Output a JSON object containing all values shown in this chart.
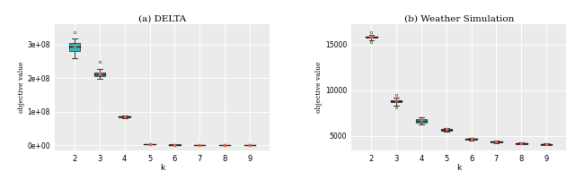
{
  "title_a": "(a) DELTA",
  "title_b": "(b) Weather Simulation",
  "xlabel": "k",
  "ylabel": "objective value",
  "bg_color": "#EBEBEB",
  "grid_color": "white",
  "box_facecolor": "#26bfbf",
  "box_edgecolor": "#333333",
  "median_color": "#1a1a1a",
  "mean_color": "#e8604c",
  "whisker_color": "#333333",
  "flier_color": "#555555",
  "k_values": [
    2,
    3,
    4,
    5,
    6,
    7,
    8,
    9
  ],
  "delta_data": {
    "medians": [
      295000000.0,
      212000000.0,
      86000000.0,
      3200000.0,
      2200000.0,
      1900000.0,
      1800000.0,
      1800000.0
    ],
    "q1": [
      282000000.0,
      207000000.0,
      83500000.0,
      2900000.0,
      2050000.0,
      1800000.0,
      1700000.0,
      1720000.0
    ],
    "q3": [
      305000000.0,
      218000000.0,
      87500000.0,
      3400000.0,
      2350000.0,
      1950000.0,
      1850000.0,
      1870000.0
    ],
    "whislo": [
      260000000.0,
      198000000.0,
      81500000.0,
      2600000.0,
      1950000.0,
      1720000.0,
      1620000.0,
      1650000.0
    ],
    "whishi": [
      318000000.0,
      228000000.0,
      89500000.0,
      3700000.0,
      2550000.0,
      2050000.0,
      1950000.0,
      1970000.0
    ],
    "fliers_hi": [
      338000000.0,
      248000000.0,
      null,
      null,
      null,
      null,
      null,
      null
    ],
    "fliers_lo": [
      null,
      null,
      null,
      null,
      null,
      null,
      null,
      null
    ],
    "means": [
      295000000.0,
      213000000.0,
      86200000.0,
      3220000.0,
      2220000.0,
      1910000.0,
      1810000.0,
      1810000.0
    ]
  },
  "weather_data": {
    "medians": [
      15820,
      8820,
      6650,
      5680,
      4630,
      4340,
      4170,
      4060
    ],
    "q1": [
      15720,
      8650,
      6480,
      5600,
      4560,
      4290,
      4120,
      4010
    ],
    "q3": [
      15900,
      8900,
      6800,
      5760,
      4700,
      4400,
      4220,
      4110
    ],
    "whislo": [
      15500,
      8350,
      6200,
      5470,
      4460,
      4210,
      4040,
      3940
    ],
    "whishi": [
      16050,
      9150,
      7020,
      5900,
      4820,
      4490,
      4310,
      4200
    ],
    "fliers_hi": [
      16300,
      9480,
      null,
      null,
      null,
      null,
      null,
      null
    ],
    "fliers_lo": [
      15250,
      8120,
      null,
      null,
      null,
      null,
      null,
      null
    ],
    "means": [
      15840,
      8870,
      6700,
      5710,
      4645,
      4350,
      4175,
      4070
    ]
  },
  "delta_yticks": [
    0,
    100000000.0,
    200000000.0,
    300000000.0
  ],
  "delta_yticklabels": [
    "0e+00",
    "1e+08",
    "2e+08",
    "3e+08"
  ],
  "delta_ylim": [
    -15000000.0,
    360000000.0
  ],
  "weather_yticks": [
    5000,
    10000,
    15000
  ],
  "weather_yticklabels": [
    "5000",
    "10000",
    "15000"
  ],
  "weather_ylim": [
    3400,
    17200
  ]
}
